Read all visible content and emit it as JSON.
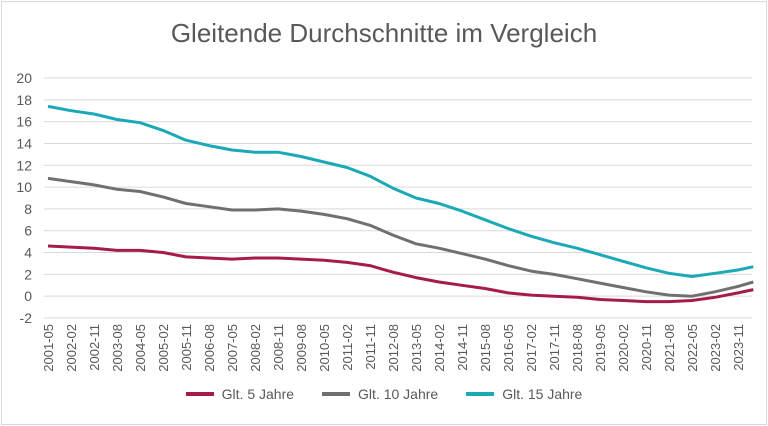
{
  "chart_data": {
    "type": "line",
    "title": "Gleitende Durchschnitte im Vergleich",
    "xlabel": "",
    "ylabel": "",
    "ylim": [
      -2,
      20
    ],
    "yticks": [
      "-2",
      "0",
      "2",
      "4",
      "6",
      "8",
      "10",
      "12",
      "14",
      "16",
      "18",
      "20"
    ],
    "grid": true,
    "legend_position": "bottom",
    "x_tick_labels": [
      "2001-05",
      "2002-02",
      "2002-11",
      "2003-08",
      "2004-05",
      "2005-02",
      "2005-11",
      "2006-08",
      "2007-05",
      "2008-02",
      "2008-11",
      "2009-08",
      "2010-05",
      "2011-02",
      "2011-11",
      "2012-08",
      "2013-05",
      "2014-02",
      "2014-11",
      "2015-08",
      "2016-05",
      "2017-02",
      "2017-11",
      "2018-08",
      "2019-05",
      "2020-02",
      "2020-11",
      "2021-08",
      "2022-05",
      "2023-02",
      "2023-11"
    ],
    "x": [
      "2001-05",
      "2002-02",
      "2002-11",
      "2003-08",
      "2004-05",
      "2005-02",
      "2005-11",
      "2006-08",
      "2007-05",
      "2008-02",
      "2008-11",
      "2009-08",
      "2010-05",
      "2011-02",
      "2011-11",
      "2012-08",
      "2013-05",
      "2014-02",
      "2014-11",
      "2015-08",
      "2016-05",
      "2017-02",
      "2017-11",
      "2018-08",
      "2019-05",
      "2020-02",
      "2020-11",
      "2021-08",
      "2022-05",
      "2023-02",
      "2023-11",
      "2024-05"
    ],
    "series": [
      {
        "name": "Glt. 5 Jahre",
        "color": "#A51C4C",
        "values": [
          4.6,
          4.5,
          4.4,
          4.2,
          4.2,
          4.0,
          3.6,
          3.5,
          3.4,
          3.5,
          3.5,
          3.4,
          3.3,
          3.1,
          2.8,
          2.2,
          1.7,
          1.3,
          1.0,
          0.7,
          0.3,
          0.1,
          0.0,
          -0.1,
          -0.3,
          -0.4,
          -0.5,
          -0.5,
          -0.4,
          -0.1,
          0.3,
          0.6
        ]
      },
      {
        "name": "Glt. 10 Jahre",
        "color": "#707070",
        "values": [
          10.8,
          10.5,
          10.2,
          9.8,
          9.6,
          9.1,
          8.5,
          8.2,
          7.9,
          7.9,
          8.0,
          7.8,
          7.5,
          7.1,
          6.5,
          5.6,
          4.8,
          4.4,
          3.9,
          3.4,
          2.8,
          2.3,
          2.0,
          1.6,
          1.2,
          0.8,
          0.4,
          0.1,
          0.0,
          0.4,
          0.9,
          1.3
        ]
      },
      {
        "name": "Glt. 15 Jahre",
        "color": "#1BA9B8",
        "values": [
          17.4,
          17.0,
          16.7,
          16.2,
          15.9,
          15.2,
          14.3,
          13.8,
          13.4,
          13.2,
          13.2,
          12.8,
          12.3,
          11.8,
          11.0,
          9.9,
          9.0,
          8.5,
          7.8,
          7.0,
          6.2,
          5.5,
          4.9,
          4.4,
          3.8,
          3.2,
          2.6,
          2.1,
          1.8,
          2.1,
          2.4,
          2.7
        ]
      }
    ]
  }
}
